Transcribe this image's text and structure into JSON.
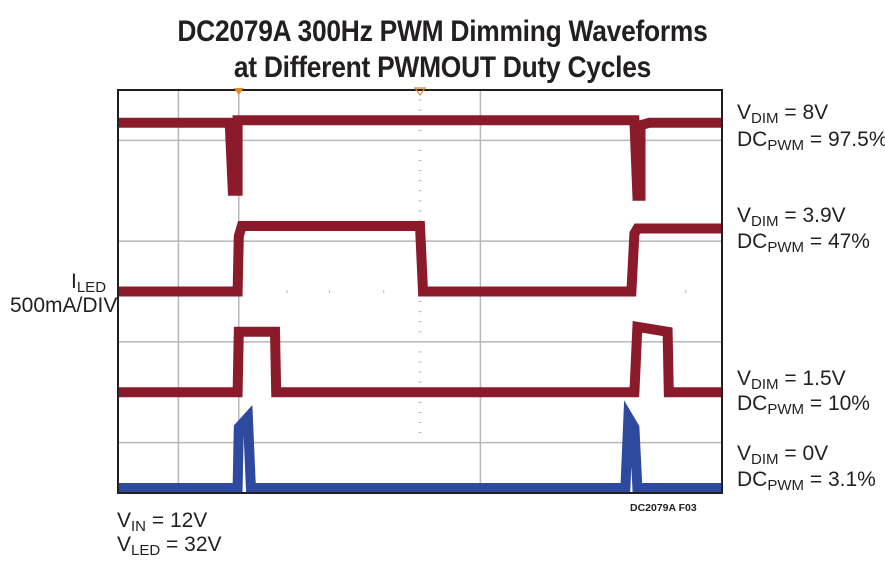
{
  "title": {
    "line1": "DC2079A 300Hz PWM Dimming Waveforms",
    "line2": "at Different PWMOUT Duty Cycles"
  },
  "y_axis": {
    "symbol": "I",
    "subscript": "LED",
    "scale": "500mA/DIV"
  },
  "conditions": [
    {
      "symbol": "V",
      "subscript": "IN",
      "text": " = 12V"
    },
    {
      "symbol": "V",
      "subscript": "LED",
      "text": " = 32V"
    }
  ],
  "figure_id": "DC2079A F03",
  "colors": {
    "trace_red": "#8b1a2b",
    "trace_blue": "#2e4a9e",
    "grid": "#b8b8b8",
    "marker": "#e08a2c"
  },
  "chart_data": {
    "type": "line",
    "title": "DC2079A 300Hz PWM Dimming Waveforms at Different PWMOUT Duty Cycles",
    "xlabel": "",
    "ylabel": "ILED 500mA/DIV",
    "grid": true,
    "x_divisions": 10,
    "y_divisions": 8,
    "xlim": [
      0,
      10
    ],
    "ylim": [
      0,
      8
    ],
    "series": [
      {
        "name": "VDIM = 8V, DCPWM = 97.5%",
        "vdim": "8V",
        "dc": "97.5%",
        "color": "#8b1a2b",
        "points": [
          [
            0,
            7.35
          ],
          [
            1.85,
            7.35
          ],
          [
            1.9,
            6.0
          ],
          [
            1.98,
            6.0
          ],
          [
            1.98,
            7.4
          ],
          [
            8.55,
            7.4
          ],
          [
            8.6,
            5.9
          ],
          [
            8.65,
            5.9
          ],
          [
            8.65,
            7.3
          ],
          [
            8.8,
            7.35
          ],
          [
            10,
            7.35
          ]
        ]
      },
      {
        "name": "VDIM = 3.9V, DCPWM = 47%",
        "vdim": "3.9V",
        "dc": "47%",
        "color": "#8b1a2b",
        "points": [
          [
            0,
            4.0
          ],
          [
            1.98,
            4.0
          ],
          [
            2.0,
            5.1
          ],
          [
            2.05,
            5.3
          ],
          [
            5.0,
            5.3
          ],
          [
            5.05,
            4.0
          ],
          [
            8.5,
            4.0
          ],
          [
            8.55,
            5.15
          ],
          [
            8.6,
            5.25
          ],
          [
            10,
            5.25
          ]
        ]
      },
      {
        "name": "VDIM = 1.5V, DCPWM = 10%",
        "vdim": "1.5V",
        "dc": "10%",
        "color": "#8b1a2b",
        "points": [
          [
            0,
            2.0
          ],
          [
            1.98,
            2.0
          ],
          [
            2.0,
            3.2
          ],
          [
            2.6,
            3.2
          ],
          [
            2.62,
            2.0
          ],
          [
            8.55,
            2.0
          ],
          [
            8.6,
            3.3
          ],
          [
            9.1,
            3.2
          ],
          [
            9.12,
            2.0
          ],
          [
            10,
            2.0
          ]
        ]
      },
      {
        "name": "VDIM = 0V, DCPWM = 3.1%",
        "vdim": "0V",
        "dc": "3.1%",
        "color": "#2e4a9e",
        "points": [
          [
            0,
            0.1
          ],
          [
            1.98,
            0.1
          ],
          [
            2.0,
            1.3
          ],
          [
            2.15,
            1.5
          ],
          [
            2.2,
            0.1
          ],
          [
            8.4,
            0.1
          ],
          [
            8.45,
            1.5
          ],
          [
            8.55,
            1.3
          ],
          [
            8.6,
            0.1
          ],
          [
            10,
            0.1
          ]
        ]
      }
    ],
    "annotations": [
      {
        "vdim_label": "8V",
        "dc_label": "97.5%"
      },
      {
        "vdim_label": "3.9V",
        "dc_label": "47%"
      },
      {
        "vdim_label": "1.5V",
        "dc_label": "10%"
      },
      {
        "vdim_label": "0V",
        "dc_label": "3.1%"
      }
    ]
  }
}
